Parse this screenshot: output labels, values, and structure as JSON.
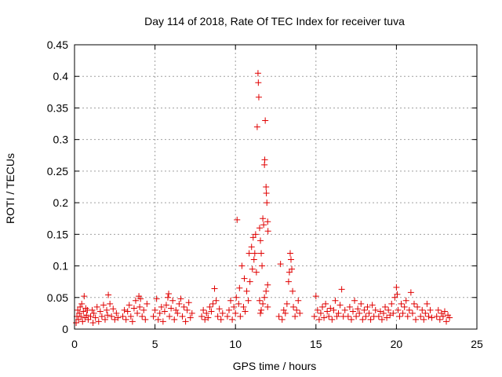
{
  "chart_data": {
    "type": "scatter",
    "title": "Day 114 of 2018, Rate Of TEC Index for receiver tuva",
    "xlabel": "GPS time / hours",
    "ylabel": "ROTI / TECUs",
    "xlim": [
      0,
      25
    ],
    "ylim": [
      0,
      0.45
    ],
    "xticks": [
      0,
      5,
      10,
      15,
      20,
      25
    ],
    "yticks": [
      0,
      0.05,
      0.1,
      0.15,
      0.2,
      0.25,
      0.3,
      0.35,
      0.4,
      0.45
    ],
    "xtick_labels": [
      "0",
      "5",
      "10",
      "15",
      "20",
      "25"
    ],
    "ytick_labels": [
      "0",
      "0.05",
      "0.1",
      "0.15",
      "0.2",
      "0.25",
      "0.3",
      "0.35",
      "0.4",
      "0.45"
    ],
    "grid": true,
    "marker": "+",
    "color": "#e00000",
    "series": [
      {
        "points": [
          [
            0.1,
            0.01
          ],
          [
            0.15,
            0.02
          ],
          [
            0.2,
            0.03
          ],
          [
            0.25,
            0.015
          ],
          [
            0.3,
            0.025
          ],
          [
            0.35,
            0.035
          ],
          [
            0.4,
            0.02
          ],
          [
            0.45,
            0.04
          ],
          [
            0.5,
            0.012
          ],
          [
            0.55,
            0.028
          ],
          [
            0.6,
            0.052
          ],
          [
            0.65,
            0.018
          ],
          [
            0.7,
            0.033
          ],
          [
            0.75,
            0.022
          ],
          [
            0.8,
            0.03
          ],
          [
            0.85,
            0.015
          ],
          [
            1.0,
            0.02
          ],
          [
            1.1,
            0.03
          ],
          [
            1.15,
            0.01
          ],
          [
            1.2,
            0.025
          ],
          [
            1.3,
            0.018
          ],
          [
            1.4,
            0.035
          ],
          [
            1.5,
            0.012
          ],
          [
            1.6,
            0.028
          ],
          [
            1.7,
            0.02
          ],
          [
            1.8,
            0.038
          ],
          [
            1.9,
            0.015
          ],
          [
            2.0,
            0.03
          ],
          [
            2.05,
            0.022
          ],
          [
            2.1,
            0.054
          ],
          [
            2.2,
            0.04
          ],
          [
            2.3,
            0.02
          ],
          [
            2.4,
            0.032
          ],
          [
            2.5,
            0.015
          ],
          [
            2.6,
            0.025
          ],
          [
            2.7,
            0.018
          ],
          [
            3.0,
            0.02
          ],
          [
            3.1,
            0.03
          ],
          [
            3.2,
            0.015
          ],
          [
            3.3,
            0.028
          ],
          [
            3.4,
            0.038
          ],
          [
            3.5,
            0.02
          ],
          [
            3.6,
            0.012
          ],
          [
            3.7,
            0.033
          ],
          [
            3.8,
            0.045
          ],
          [
            3.9,
            0.025
          ],
          [
            4.0,
            0.052
          ],
          [
            4.05,
            0.035
          ],
          [
            4.1,
            0.048
          ],
          [
            4.2,
            0.02
          ],
          [
            4.3,
            0.03
          ],
          [
            4.4,
            0.015
          ],
          [
            4.5,
            0.04
          ],
          [
            4.9,
            0.02
          ],
          [
            5.0,
            0.03
          ],
          [
            5.1,
            0.048
          ],
          [
            5.2,
            0.015
          ],
          [
            5.3,
            0.025
          ],
          [
            5.4,
            0.035
          ],
          [
            5.5,
            0.012
          ],
          [
            5.6,
            0.028
          ],
          [
            5.7,
            0.038
          ],
          [
            5.8,
            0.05
          ],
          [
            5.85,
            0.056
          ],
          [
            5.9,
            0.02
          ],
          [
            6.0,
            0.033
          ],
          [
            6.1,
            0.045
          ],
          [
            6.2,
            0.015
          ],
          [
            6.3,
            0.03
          ],
          [
            6.4,
            0.025
          ],
          [
            6.5,
            0.04
          ],
          [
            6.6,
            0.048
          ],
          [
            6.7,
            0.02
          ],
          [
            6.8,
            0.035
          ],
          [
            6.9,
            0.012
          ],
          [
            7.0,
            0.03
          ],
          [
            7.1,
            0.042
          ],
          [
            7.2,
            0.018
          ],
          [
            7.3,
            0.025
          ],
          [
            7.9,
            0.02
          ],
          [
            8.0,
            0.03
          ],
          [
            8.1,
            0.015
          ],
          [
            8.2,
            0.025
          ],
          [
            8.3,
            0.018
          ],
          [
            8.4,
            0.035
          ],
          [
            8.5,
            0.028
          ],
          [
            8.6,
            0.04
          ],
          [
            8.7,
            0.064
          ],
          [
            8.8,
            0.045
          ],
          [
            8.9,
            0.02
          ],
          [
            9.0,
            0.032
          ],
          [
            9.1,
            0.015
          ],
          [
            9.2,
            0.025
          ],
          [
            9.5,
            0.02
          ],
          [
            9.6,
            0.03
          ],
          [
            9.7,
            0.045
          ],
          [
            9.8,
            0.015
          ],
          [
            9.9,
            0.035
          ],
          [
            10.0,
            0.025
          ],
          [
            10.05,
            0.05
          ],
          [
            10.1,
            0.173
          ],
          [
            10.2,
            0.04
          ],
          [
            10.25,
            0.065
          ],
          [
            10.3,
            0.02
          ],
          [
            10.4,
            0.1
          ],
          [
            10.5,
            0.035
          ],
          [
            10.55,
            0.08
          ],
          [
            10.6,
            0.028
          ],
          [
            10.7,
            0.06
          ],
          [
            10.8,
            0.045
          ],
          [
            10.85,
            0.12
          ],
          [
            10.9,
            0.075
          ],
          [
            11.0,
            0.13
          ],
          [
            11.05,
            0.095
          ],
          [
            11.1,
            0.145
          ],
          [
            11.15,
            0.11
          ],
          [
            11.2,
            0.12
          ],
          [
            11.25,
            0.15
          ],
          [
            11.3,
            0.09
          ],
          [
            11.35,
            0.32
          ],
          [
            11.4,
            0.405
          ],
          [
            11.42,
            0.39
          ],
          [
            11.45,
            0.367
          ],
          [
            11.5,
            0.16
          ],
          [
            11.55,
            0.14
          ],
          [
            11.6,
            0.12
          ],
          [
            11.65,
            0.1
          ],
          [
            11.7,
            0.175
          ],
          [
            11.75,
            0.165
          ],
          [
            11.8,
            0.26
          ],
          [
            11.82,
            0.268
          ],
          [
            11.85,
            0.33
          ],
          [
            11.9,
            0.225
          ],
          [
            11.92,
            0.215
          ],
          [
            11.95,
            0.2
          ],
          [
            12.0,
            0.17
          ],
          [
            12.02,
            0.155
          ],
          [
            11.6,
            0.03
          ],
          [
            11.7,
            0.04
          ],
          [
            11.8,
            0.05
          ],
          [
            11.9,
            0.06
          ],
          [
            12.0,
            0.035
          ],
          [
            11.5,
            0.045
          ],
          [
            11.55,
            0.025
          ],
          [
            12.0,
            0.07
          ],
          [
            12.7,
            0.02
          ],
          [
            12.8,
            0.103
          ],
          [
            12.9,
            0.015
          ],
          [
            13.0,
            0.03
          ],
          [
            13.1,
            0.025
          ],
          [
            13.2,
            0.04
          ],
          [
            13.3,
            0.075
          ],
          [
            13.35,
            0.09
          ],
          [
            13.4,
            0.12
          ],
          [
            13.45,
            0.11
          ],
          [
            13.5,
            0.095
          ],
          [
            13.55,
            0.06
          ],
          [
            13.6,
            0.035
          ],
          [
            13.7,
            0.02
          ],
          [
            13.8,
            0.03
          ],
          [
            13.9,
            0.045
          ],
          [
            14.0,
            0.025
          ],
          [
            14.9,
            0.02
          ],
          [
            15.0,
            0.052
          ],
          [
            15.1,
            0.03
          ],
          [
            15.2,
            0.015
          ],
          [
            15.3,
            0.025
          ],
          [
            15.4,
            0.035
          ],
          [
            15.5,
            0.018
          ],
          [
            15.6,
            0.04
          ],
          [
            15.7,
            0.028
          ],
          [
            15.8,
            0.02
          ],
          [
            15.9,
            0.033
          ],
          [
            16.0,
            0.015
          ],
          [
            16.1,
            0.03
          ],
          [
            16.2,
            0.045
          ],
          [
            16.3,
            0.02
          ],
          [
            16.4,
            0.025
          ],
          [
            16.5,
            0.038
          ],
          [
            16.6,
            0.063
          ],
          [
            16.7,
            0.02
          ],
          [
            16.8,
            0.03
          ],
          [
            17.0,
            0.02
          ],
          [
            17.1,
            0.035
          ],
          [
            17.2,
            0.015
          ],
          [
            17.3,
            0.028
          ],
          [
            17.4,
            0.045
          ],
          [
            17.5,
            0.02
          ],
          [
            17.6,
            0.032
          ],
          [
            17.7,
            0.025
          ],
          [
            17.8,
            0.04
          ],
          [
            17.9,
            0.015
          ],
          [
            18.0,
            0.03
          ],
          [
            18.1,
            0.02
          ],
          [
            18.2,
            0.035
          ],
          [
            18.3,
            0.025
          ],
          [
            18.4,
            0.015
          ],
          [
            18.5,
            0.038
          ],
          [
            18.6,
            0.02
          ],
          [
            18.7,
            0.03
          ],
          [
            18.9,
            0.02
          ],
          [
            19.0,
            0.028
          ],
          [
            19.1,
            0.015
          ],
          [
            19.2,
            0.025
          ],
          [
            19.3,
            0.035
          ],
          [
            19.4,
            0.018
          ],
          [
            19.5,
            0.03
          ],
          [
            19.6,
            0.022
          ],
          [
            19.7,
            0.04
          ],
          [
            19.8,
            0.025
          ],
          [
            19.9,
            0.05
          ],
          [
            20.0,
            0.066
          ],
          [
            20.05,
            0.055
          ],
          [
            20.1,
            0.03
          ],
          [
            20.2,
            0.02
          ],
          [
            20.3,
            0.04
          ],
          [
            20.4,
            0.025
          ],
          [
            20.5,
            0.035
          ],
          [
            20.6,
            0.045
          ],
          [
            20.7,
            0.02
          ],
          [
            20.8,
            0.03
          ],
          [
            20.9,
            0.058
          ],
          [
            21.0,
            0.025
          ],
          [
            21.1,
            0.04
          ],
          [
            21.2,
            0.015
          ],
          [
            21.3,
            0.035
          ],
          [
            21.5,
            0.02
          ],
          [
            21.6,
            0.03
          ],
          [
            21.7,
            0.015
          ],
          [
            21.8,
            0.025
          ],
          [
            21.9,
            0.04
          ],
          [
            22.0,
            0.02
          ],
          [
            22.1,
            0.03
          ],
          [
            22.2,
            0.018
          ],
          [
            22.5,
            0.02
          ],
          [
            22.6,
            0.03
          ],
          [
            22.7,
            0.015
          ],
          [
            22.8,
            0.025
          ],
          [
            22.9,
            0.02
          ],
          [
            23.0,
            0.028
          ],
          [
            23.1,
            0.012
          ],
          [
            23.2,
            0.022
          ],
          [
            23.3,
            0.018
          ]
        ]
      }
    ]
  }
}
